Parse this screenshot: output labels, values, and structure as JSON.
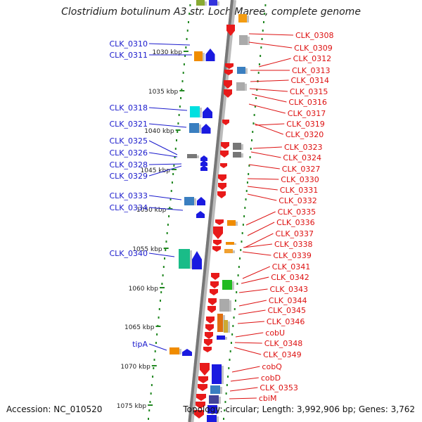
{
  "title": "Clostridium botulinum A3 str. Loch Maree, complete genome",
  "footer": {
    "accession": "Accession: NC_010520",
    "summary": "Topology: circular; Length: 3,992,906 bp; Genes: 3,762"
  },
  "colors": {
    "left_label": "#1a1acc",
    "right_label": "#dd1111",
    "backbone": "#777777",
    "dots": "#228822"
  },
  "scale_labels": [
    {
      "kbp": 1030,
      "text": "1030 kbp"
    },
    {
      "kbp": 1035,
      "text": "1035 kbp"
    },
    {
      "kbp": 1040,
      "text": "1040 kbp"
    },
    {
      "kbp": 1045,
      "text": "1045 kbp"
    },
    {
      "kbp": 1050,
      "text": "1050 kbp"
    },
    {
      "kbp": 1055,
      "text": "1055 kbp"
    },
    {
      "kbp": 1060,
      "text": "1060 kbp"
    },
    {
      "kbp": 1065,
      "text": "1065 kbp"
    },
    {
      "kbp": 1070,
      "text": "1070 kbp"
    },
    {
      "kbp": 1075,
      "text": "1075 kbp"
    }
  ],
  "left_genes": [
    {
      "name": "CLK_0310"
    },
    {
      "name": "CLK_0311"
    },
    {
      "name": "CLK_0318"
    },
    {
      "name": "CLK_0321"
    },
    {
      "name": "CLK_0325"
    },
    {
      "name": "CLK_0326"
    },
    {
      "name": "CLK_0328"
    },
    {
      "name": "CLK_0329"
    },
    {
      "name": "CLK_0333"
    },
    {
      "name": "CLK_0334"
    },
    {
      "name": "CLK_0340"
    },
    {
      "name": "tipA"
    }
  ],
  "right_genes": [
    {
      "name": "CLK_0308"
    },
    {
      "name": "CLK_0309"
    },
    {
      "name": "CLK_0312"
    },
    {
      "name": "CLK_0313"
    },
    {
      "name": "CLK_0314"
    },
    {
      "name": "CLK_0315"
    },
    {
      "name": "CLK_0316"
    },
    {
      "name": "CLK_0317"
    },
    {
      "name": "CLK_0319"
    },
    {
      "name": "CLK_0320"
    },
    {
      "name": "CLK_0323"
    },
    {
      "name": "CLK_0324"
    },
    {
      "name": "CLK_0327"
    },
    {
      "name": "CLK_0330"
    },
    {
      "name": "CLK_0331"
    },
    {
      "name": "CLK_0332"
    },
    {
      "name": "CLK_0335"
    },
    {
      "name": "CLK_0336"
    },
    {
      "name": "CLK_0337"
    },
    {
      "name": "CLK_0338"
    },
    {
      "name": "CLK_0339"
    },
    {
      "name": "CLK_0341"
    },
    {
      "name": "CLK_0342"
    },
    {
      "name": "CLK_0343"
    },
    {
      "name": "CLK_0344"
    },
    {
      "name": "CLK_0345"
    },
    {
      "name": "CLK_0346"
    },
    {
      "name": "cobU"
    },
    {
      "name": "CLK_0348"
    },
    {
      "name": "CLK_0349"
    },
    {
      "name": "cobQ"
    },
    {
      "name": "cobD"
    },
    {
      "name": "CLK_0353"
    },
    {
      "name": "cbiM"
    }
  ]
}
